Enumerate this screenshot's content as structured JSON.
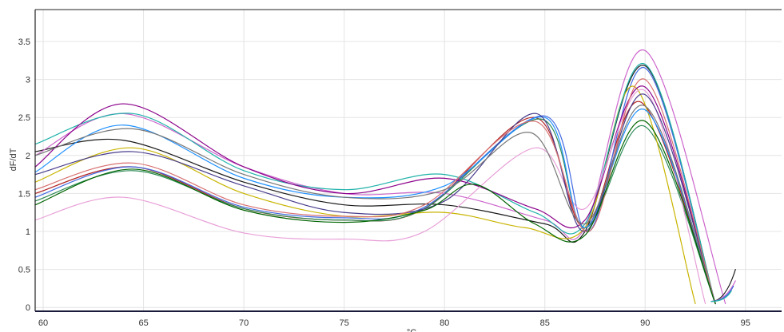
{
  "chart_data": {
    "type": "line",
    "title": "",
    "xlabel": "°C",
    "ylabel": "dF/dT",
    "xlim": [
      59.6,
      96.8
    ],
    "ylim": [
      -0.05,
      3.92
    ],
    "x_ticks": [
      "60",
      "65",
      "70",
      "75",
      "80",
      "85",
      "90",
      "95"
    ],
    "y_ticks": [
      "0",
      "0.5",
      "1",
      "1.5",
      "2",
      "2.5",
      "3",
      "3.5"
    ],
    "grid": true,
    "legend": "none",
    "series": [
      {
        "color": "#1a1a1a",
        "points": [
          [
            59.6,
            2.05
          ],
          [
            64,
            2.2
          ],
          [
            70,
            1.65
          ],
          [
            75,
            1.35
          ],
          [
            80,
            1.35
          ],
          [
            85,
            1.1
          ],
          [
            87,
            1.0
          ],
          [
            90,
            3.18
          ],
          [
            93.5,
            0.05
          ]
        ]
      },
      {
        "color": "#b22222",
        "points": [
          [
            59.6,
            1.5
          ],
          [
            64.5,
            1.85
          ],
          [
            70,
            1.3
          ],
          [
            75,
            1.15
          ],
          [
            79,
            1.3
          ],
          [
            84.5,
            2.5
          ],
          [
            87,
            1.05
          ],
          [
            89.8,
            2.7
          ],
          [
            93.5,
            0.05
          ]
        ]
      },
      {
        "color": "#4169e1",
        "points": [
          [
            59.6,
            1.45
          ],
          [
            64.5,
            1.85
          ],
          [
            70,
            1.32
          ],
          [
            75,
            1.18
          ],
          [
            79,
            1.32
          ],
          [
            85,
            2.52
          ],
          [
            87.2,
            1.0
          ],
          [
            90,
            3.15
          ],
          [
            93.5,
            0.05
          ]
        ]
      },
      {
        "color": "#cc66cc",
        "points": [
          [
            59.6,
            2.0
          ],
          [
            64,
            2.55
          ],
          [
            70,
            1.85
          ],
          [
            75,
            1.5
          ],
          [
            80,
            1.5
          ],
          [
            85,
            1.15
          ],
          [
            87,
            1.05
          ],
          [
            90,
            3.38
          ],
          [
            94,
            0.05
          ]
        ]
      },
      {
        "color": "#2e8b57",
        "points": [
          [
            59.6,
            1.4
          ],
          [
            64.5,
            1.8
          ],
          [
            70,
            1.3
          ],
          [
            75,
            1.15
          ],
          [
            79,
            1.3
          ],
          [
            84.8,
            2.48
          ],
          [
            87,
            1.05
          ],
          [
            90,
            2.38
          ],
          [
            93.5,
            0.05
          ]
        ]
      },
      {
        "color": "#c8b400",
        "points": [
          [
            59.6,
            1.65
          ],
          [
            64.5,
            2.1
          ],
          [
            70,
            1.5
          ],
          [
            75,
            1.2
          ],
          [
            80,
            1.25
          ],
          [
            84,
            1.05
          ],
          [
            87,
            1.05
          ],
          [
            89.5,
            2.9
          ],
          [
            92.5,
            0.05
          ]
        ]
      },
      {
        "color": "#20b2aa",
        "points": [
          [
            59.6,
            2.15
          ],
          [
            64.5,
            2.55
          ],
          [
            70,
            1.8
          ],
          [
            75,
            1.55
          ],
          [
            80,
            1.75
          ],
          [
            84.5,
            1.25
          ],
          [
            87,
            1.1
          ],
          [
            90,
            3.2
          ],
          [
            93.5,
            0.05
          ]
        ]
      },
      {
        "color": "#8b008b",
        "points": [
          [
            59.6,
            1.85
          ],
          [
            64,
            2.68
          ],
          [
            70,
            1.85
          ],
          [
            75,
            1.5
          ],
          [
            80,
            1.7
          ],
          [
            84.5,
            1.3
          ],
          [
            87,
            1.15
          ],
          [
            90,
            2.9
          ],
          [
            93.5,
            0.05
          ]
        ]
      },
      {
        "color": "#e8a0d8",
        "points": [
          [
            59.6,
            1.15
          ],
          [
            64,
            1.45
          ],
          [
            70,
            0.98
          ],
          [
            75,
            0.9
          ],
          [
            79,
            1.0
          ],
          [
            84.5,
            2.1
          ],
          [
            87,
            1.3
          ],
          [
            90,
            2.85
          ],
          [
            93,
            0.05
          ]
        ]
      },
      {
        "color": "#1e90ff",
        "points": [
          [
            59.6,
            1.78
          ],
          [
            64,
            2.4
          ],
          [
            70,
            1.7
          ],
          [
            75,
            1.45
          ],
          [
            80,
            1.6
          ],
          [
            85,
            2.5
          ],
          [
            87,
            1.05
          ],
          [
            90,
            2.6
          ],
          [
            93.5,
            0.05
          ]
        ]
      },
      {
        "color": "#483d8b",
        "points": [
          [
            59.6,
            1.75
          ],
          [
            64.5,
            2.05
          ],
          [
            70,
            1.6
          ],
          [
            75,
            1.25
          ],
          [
            80,
            1.4
          ],
          [
            84.6,
            2.55
          ],
          [
            87,
            1.0
          ],
          [
            90,
            2.8
          ],
          [
            93.5,
            0.05
          ]
        ]
      },
      {
        "color": "#d87070",
        "points": [
          [
            59.6,
            1.55
          ],
          [
            64.5,
            1.9
          ],
          [
            70,
            1.35
          ],
          [
            75,
            1.2
          ],
          [
            79,
            1.35
          ],
          [
            84.5,
            2.45
          ],
          [
            87.2,
            1.0
          ],
          [
            90,
            3.0
          ],
          [
            93.5,
            0.05
          ]
        ]
      },
      {
        "color": "#777777",
        "points": [
          [
            59.6,
            2.0
          ],
          [
            64.5,
            2.35
          ],
          [
            70,
            1.75
          ],
          [
            75,
            1.45
          ],
          [
            80,
            1.55
          ],
          [
            84.3,
            2.3
          ],
          [
            87,
            1.1
          ],
          [
            90,
            2.65
          ],
          [
            93.5,
            0.05
          ]
        ]
      },
      {
        "color": "#006400",
        "points": [
          [
            59.6,
            1.35
          ],
          [
            64.5,
            1.82
          ],
          [
            70,
            1.28
          ],
          [
            75,
            1.12
          ],
          [
            79,
            1.28
          ],
          [
            81.5,
            1.62
          ],
          [
            84.5,
            1.1
          ],
          [
            87,
            0.95
          ],
          [
            90,
            2.45
          ],
          [
            93.5,
            0.05
          ]
        ]
      }
    ]
  }
}
